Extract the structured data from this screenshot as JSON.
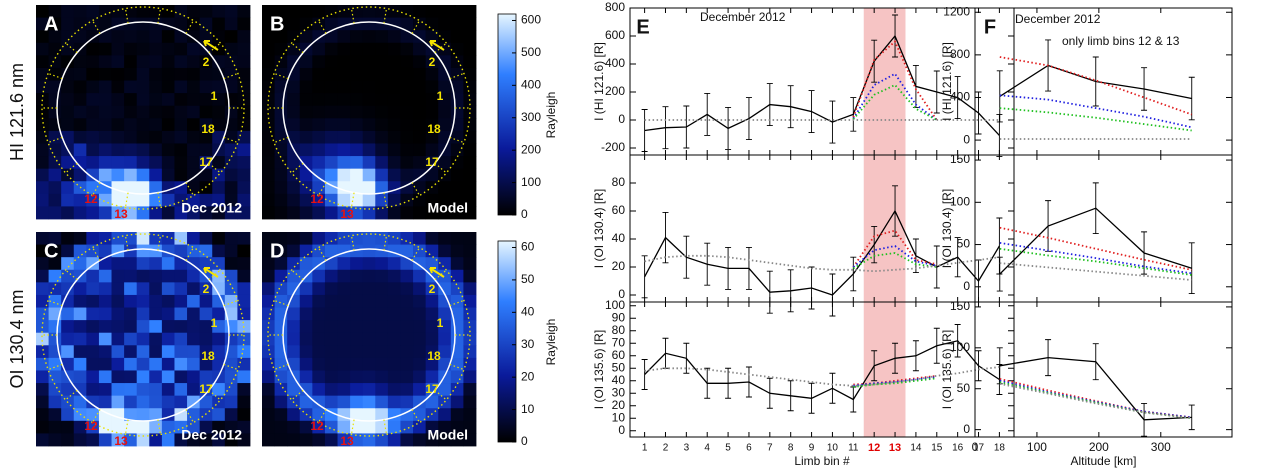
{
  "chart_data": [
    {
      "type": "image",
      "row_label": "HI 121.6 nm",
      "panels": [
        {
          "label": "A",
          "caption": "Dec 2012"
        },
        {
          "label": "B",
          "caption": "Model"
        }
      ],
      "limb_labels": [
        "2",
        "1",
        "18",
        "17",
        "12",
        "13"
      ],
      "colorbar": {
        "label": "Rayleigh",
        "lim": [
          0,
          620
        ],
        "ticks": [
          0,
          100,
          200,
          300,
          400,
          500,
          600
        ]
      }
    },
    {
      "type": "image",
      "row_label": "OI 130.4 nm",
      "panels": [
        {
          "label": "C",
          "caption": "Dec 2012"
        },
        {
          "label": "D",
          "caption": "Model"
        }
      ],
      "limb_labels": [
        "2",
        "1",
        "18",
        "17",
        "12",
        "13"
      ],
      "colorbar": {
        "label": "Rayleigh",
        "lim": [
          0,
          62
        ],
        "ticks": [
          0,
          10,
          20,
          30,
          40,
          50,
          60
        ]
      }
    },
    {
      "type": "line",
      "label": "E",
      "annotations": [
        "December 2012"
      ],
      "xlabel": "Limb bin #",
      "x": [
        1,
        2,
        3,
        4,
        5,
        6,
        7,
        8,
        9,
        10,
        11,
        12,
        13,
        14,
        15,
        16,
        17,
        18
      ],
      "xlim": [
        0.3,
        18.7
      ],
      "xticks": [
        1,
        2,
        3,
        4,
        5,
        6,
        7,
        8,
        9,
        10,
        11,
        12,
        13,
        14,
        15,
        16,
        17,
        18
      ],
      "highlight": [
        11.5,
        13.5
      ],
      "highlight_color": "#f6c4c4",
      "highlight_ticks": [
        12,
        13
      ],
      "highlight_tick_color": "#e00000",
      "subplots": [
        {
          "ylabel": "I (HI 121.6) [R]",
          "ylim": [
            -250,
            800
          ],
          "yticks": [
            -200,
            0,
            200,
            400,
            600,
            800
          ],
          "series": [
            {
              "color": "#000000",
              "style": "solid",
              "values": [
                -75,
                -55,
                -50,
                40,
                -60,
                10,
                110,
                95,
                60,
                -15,
                40,
                420,
                600,
                240,
                200,
                160,
                50,
                -110
              ],
              "errors": [
                150,
                150,
                150,
                150,
                150,
                150,
                150,
                150,
                150,
                150,
                120,
                150,
                150,
                150,
                150,
                150,
                150,
                150
              ]
            },
            {
              "color": "#e02020",
              "style": "dotted",
              "values": [
                null,
                null,
                null,
                null,
                null,
                null,
                null,
                null,
                null,
                null,
                20,
                430,
                560,
                220,
                0,
                null,
                null,
                null
              ]
            },
            {
              "color": "#2020e0",
              "style": "dotted",
              "values": [
                null,
                null,
                null,
                null,
                null,
                null,
                null,
                null,
                null,
                null,
                10,
                250,
                330,
                110,
                0,
                null,
                null,
                null
              ]
            },
            {
              "color": "#20c020",
              "style": "dotted",
              "values": [
                null,
                null,
                null,
                null,
                null,
                null,
                null,
                null,
                null,
                null,
                5,
                180,
                250,
                80,
                0,
                null,
                null,
                null
              ]
            },
            {
              "color": "#888888",
              "style": "dotted",
              "values": [
                0,
                0,
                0,
                0,
                0,
                0,
                0,
                0,
                0,
                0,
                0,
                0,
                0,
                0,
                0,
                0,
                0,
                0
              ]
            }
          ]
        },
        {
          "ylabel": "I (OI 130.4) [R]",
          "ylim": [
            -5,
            100
          ],
          "yticks": [
            0,
            20,
            40,
            60,
            80
          ],
          "series": [
            {
              "color": "#000000",
              "style": "solid",
              "values": [
                13,
                41,
                27,
                22,
                19,
                19,
                2,
                3,
                5,
                0,
                15,
                36,
                60,
                28,
                20,
                27,
                10,
                35
              ],
              "errors": [
                15,
                18,
                15,
                15,
                15,
                15,
                15,
                15,
                15,
                15,
                12,
                13,
                18,
                12,
                15,
                14,
                15,
                20
              ]
            },
            {
              "color": "#e02020",
              "style": "dotted",
              "values": [
                null,
                null,
                null,
                null,
                null,
                null,
                null,
                null,
                null,
                null,
                20,
                42,
                46,
                25,
                22,
                null,
                null,
                null
              ]
            },
            {
              "color": "#2020e0",
              "style": "dotted",
              "values": [
                null,
                null,
                null,
                null,
                null,
                null,
                null,
                null,
                null,
                null,
                20,
                32,
                35,
                24,
                21,
                null,
                null,
                null
              ]
            },
            {
              "color": "#20c020",
              "style": "dotted",
              "values": [
                null,
                null,
                null,
                null,
                null,
                null,
                null,
                null,
                null,
                null,
                19,
                28,
                30,
                22,
                20,
                null,
                null,
                null
              ]
            },
            {
              "color": "#888888",
              "style": "dotted",
              "values": [
                24,
                27,
                28,
                28,
                27,
                25,
                23,
                21,
                19,
                18,
                18,
                17,
                18,
                19,
                21,
                23,
                25,
                27
              ]
            }
          ]
        },
        {
          "ylabel": "I (OI 135.6) [R]",
          "ylim": [
            -5,
            103
          ],
          "yticks": [
            0,
            10,
            20,
            30,
            40,
            50,
            60,
            70,
            80,
            90,
            100
          ],
          "series": [
            {
              "color": "#000000",
              "style": "solid",
              "values": [
                45,
                62,
                58,
                38,
                38,
                39,
                30,
                28,
                26,
                34,
                25,
                52,
                58,
                60,
                68,
                72,
                52,
                41
              ],
              "errors": [
                12,
                12,
                12,
                12,
                12,
                12,
                12,
                12,
                12,
                12,
                10,
                12,
                12,
                12,
                14,
                13,
                12,
                12
              ]
            },
            {
              "color": "#e02020",
              "style": "dotted",
              "values": [
                null,
                null,
                null,
                null,
                null,
                null,
                null,
                null,
                null,
                null,
                37,
                38,
                40,
                42,
                44,
                null,
                null,
                null
              ]
            },
            {
              "color": "#2020e0",
              "style": "dotted",
              "values": [
                null,
                null,
                null,
                null,
                null,
                null,
                null,
                null,
                null,
                null,
                36,
                38,
                39,
                41,
                43,
                null,
                null,
                null
              ]
            },
            {
              "color": "#20c020",
              "style": "dotted",
              "values": [
                null,
                null,
                null,
                null,
                null,
                null,
                null,
                null,
                null,
                null,
                35,
                37,
                38,
                40,
                42,
                null,
                null,
                null
              ]
            },
            {
              "color": "#888888",
              "style": "dotted",
              "values": [
                48,
                50,
                50,
                49,
                47,
                45,
                43,
                41,
                39,
                37,
                36,
                37,
                39,
                41,
                44,
                46,
                49,
                51
              ]
            }
          ]
        }
      ]
    },
    {
      "type": "line",
      "label": "F",
      "annotations": [
        "December 2012",
        "only limb bins 12 & 13"
      ],
      "xlabel": "Altitude [km]",
      "x": [
        40,
        118,
        195,
        273,
        350
      ],
      "xlim": [
        0,
        415
      ],
      "xticks": [
        0,
        100,
        200,
        300
      ],
      "subplots": [
        {
          "ylabel": "I (HI 121.6) [R]",
          "ylim": [
            -140,
            1240
          ],
          "yticks": [
            0,
            400,
            800,
            1200
          ],
          "series": [
            {
              "color": "#000000",
              "style": "solid",
              "values": [
                410,
                700,
                550,
                480,
                390
              ],
              "errors": [
                240,
                240,
                230,
                200,
                200
              ]
            },
            {
              "color": "#e02020",
              "style": "dotted",
              "values": [
                780,
                700,
                560,
                400,
                240
              ]
            },
            {
              "color": "#2020e0",
              "style": "dotted",
              "values": [
                420,
                380,
                300,
                220,
                120
              ]
            },
            {
              "color": "#20c020",
              "style": "dotted",
              "values": [
                300,
                260,
                210,
                150,
                90
              ]
            },
            {
              "color": "#888888",
              "style": "dotted",
              "values": [
                10,
                10,
                10,
                10,
                10
              ]
            }
          ]
        },
        {
          "ylabel": "I (OI 130.4) [R]",
          "ylim": [
            -18,
            156
          ],
          "yticks": [
            0,
            50,
            100,
            150
          ],
          "series": [
            {
              "color": "#000000",
              "style": "solid",
              "values": [
                15,
                72,
                93,
                40,
                22
              ],
              "errors": [
                20,
                30,
                30,
                25,
                30
              ]
            },
            {
              "color": "#e02020",
              "style": "dotted",
              "values": [
                70,
                58,
                45,
                32,
                20
              ]
            },
            {
              "color": "#2020e0",
              "style": "dotted",
              "values": [
                52,
                43,
                34,
                24,
                16
              ]
            },
            {
              "color": "#20c020",
              "style": "dotted",
              "values": [
                45,
                37,
                30,
                22,
                14
              ]
            },
            {
              "color": "#888888",
              "style": "dotted",
              "values": [
                28,
                23,
                18,
                13,
                8
              ]
            }
          ]
        },
        {
          "ylabel": "I (OI 135.6) [R]",
          "ylim": [
            -9,
            156
          ],
          "yticks": [
            0,
            50,
            100,
            150
          ],
          "series": [
            {
              "color": "#000000",
              "style": "solid",
              "values": [
                78,
                88,
                83,
                12,
                15
              ],
              "errors": [
                22,
                22,
                22,
                20,
                15
              ]
            },
            {
              "color": "#e02020",
              "style": "dotted",
              "values": [
                62,
                48,
                35,
                22,
                15
              ]
            },
            {
              "color": "#2020e0",
              "style": "dotted",
              "values": [
                60,
                46,
                34,
                22,
                15
              ]
            },
            {
              "color": "#20c020",
              "style": "dotted",
              "values": [
                58,
                45,
                33,
                21,
                14
              ]
            },
            {
              "color": "#888888",
              "style": "dotted",
              "values": [
                56,
                44,
                32,
                21,
                14
              ]
            }
          ]
        }
      ]
    }
  ]
}
